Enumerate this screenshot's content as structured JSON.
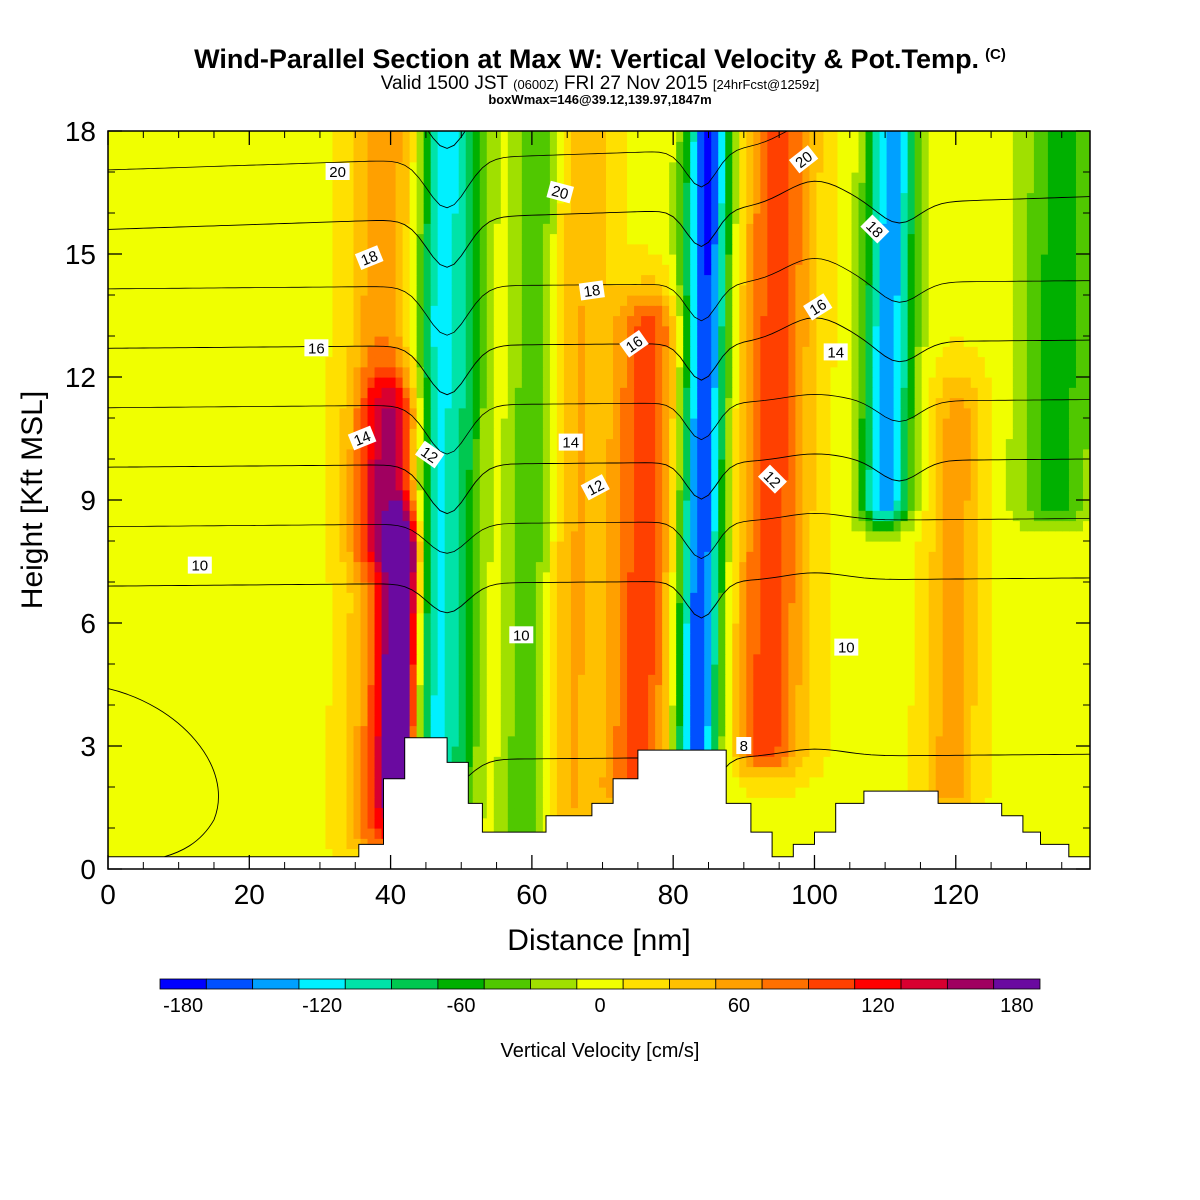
{
  "title": "Wind-Parallel Section at Max W: Vertical Velocity & Pot.Temp.",
  "title_mark": "(C)",
  "subtitle": {
    "prefix": "Valid 1500 JST",
    "utc": "(0600Z)",
    "date": "FRI 27 Nov 2015",
    "fcst": "[24hrFcst@1259z]"
  },
  "box_info": "boxWmax=146@39.12,139.97,1847m",
  "chart_data": {
    "type": "heatmap",
    "xlabel": "Distance [nm]",
    "ylabel": "Height [Kft MSL]",
    "xlim": [
      0,
      139
    ],
    "ylim": [
      0,
      18
    ],
    "x_ticks": [
      "0",
      "20",
      "40",
      "60",
      "80",
      "100",
      "120"
    ],
    "x_tick_values": [
      0,
      20,
      40,
      60,
      80,
      100,
      120
    ],
    "y_ticks": [
      "0",
      "3",
      "6",
      "9",
      "12",
      "15",
      "18"
    ],
    "y_tick_values": [
      0,
      3,
      6,
      9,
      12,
      15,
      18
    ],
    "colorbar": {
      "label": "Vertical Velocity [cm/s]",
      "tick_labels": [
        "-180",
        "-120",
        "-60",
        "0",
        "60",
        "120",
        "180"
      ],
      "tick_values": [
        -180,
        -120,
        -60,
        0,
        60,
        120,
        180
      ],
      "bounds": [
        -190,
        -170,
        -150,
        -130,
        -110,
        -90,
        -70,
        -50,
        -30,
        -10,
        10,
        30,
        50,
        70,
        90,
        110,
        130,
        150,
        170,
        190
      ],
      "colors": [
        "#0000ff",
        "#0050ff",
        "#00a0ff",
        "#00f0ff",
        "#00e3a8",
        "#00c850",
        "#00b000",
        "#50c800",
        "#a0e000",
        "#f0ff00",
        "#ffe000",
        "#ffc000",
        "#ffa000",
        "#ff7000",
        "#ff4000",
        "#ff0000",
        "#d80030",
        "#a00060",
        "#6a0aa0"
      ]
    },
    "velocity_features": [
      {
        "kind": "updraft",
        "x": 42,
        "z_bottom": 2,
        "z_top": 7.5,
        "peak": 190,
        "width": 1.6
      },
      {
        "kind": "updraft",
        "x": 40,
        "z_bottom": 1,
        "z_top": 11,
        "peak": 100,
        "width": 3.2
      },
      {
        "kind": "updraft",
        "x": 38,
        "z_bottom": 8,
        "z_top": 18,
        "peak": 60,
        "width": 3.0
      },
      {
        "kind": "downdraft",
        "x": 46,
        "z_bottom": 3,
        "z_top": 18,
        "peak": -110,
        "width": 2.0
      },
      {
        "kind": "downdraft",
        "x": 50,
        "z_bottom": 1.5,
        "z_top": 18,
        "peak": -80,
        "width": 2.2
      },
      {
        "kind": "downdraft",
        "x": 60,
        "z_bottom": 1,
        "z_top": 18,
        "peak": -55,
        "width": 2.5
      },
      {
        "kind": "updraft",
        "x": 76,
        "z_bottom": 2,
        "z_top": 13,
        "peak": 95,
        "width": 3.5
      },
      {
        "kind": "updraft",
        "x": 66,
        "z_bottom": 1,
        "z_top": 18,
        "peak": 45,
        "width": 3.0
      },
      {
        "kind": "downdraft",
        "x": 84,
        "z_bottom": 2.5,
        "z_top": 18,
        "peak": -180,
        "width": 2.3
      },
      {
        "kind": "updraft",
        "x": 94,
        "z_bottom": 3,
        "z_top": 18,
        "peak": 95,
        "width": 3.5
      },
      {
        "kind": "downdraft",
        "x": 110,
        "z_bottom": 9,
        "z_top": 18,
        "peak": -150,
        "width": 2.5
      },
      {
        "kind": "updraft",
        "x": 120,
        "z_bottom": 2,
        "z_top": 11,
        "peak": 55,
        "width": 2.5
      },
      {
        "kind": "downdraft",
        "x": 134,
        "z_bottom": 9,
        "z_top": 18,
        "peak": -65,
        "width": 4.0
      }
    ],
    "terrain_profile": {
      "x": [
        0,
        35.5,
        35.5,
        39,
        39,
        42,
        42,
        48,
        48,
        51,
        51,
        53,
        53,
        62,
        62,
        68.5,
        68.5,
        71.5,
        71.5,
        75,
        75,
        78,
        78,
        87.5,
        87.5,
        91,
        91,
        94,
        94,
        97,
        97,
        100,
        100,
        103,
        103,
        107,
        107,
        117.5,
        117.5,
        126.5,
        126.5,
        129.5,
        129.5,
        132,
        132,
        136,
        136,
        139
      ],
      "z": [
        0.3,
        0.3,
        0.6,
        0.6,
        2.2,
        2.2,
        3.2,
        3.2,
        2.6,
        2.6,
        1.6,
        1.6,
        0.9,
        0.9,
        1.3,
        1.3,
        1.6,
        1.6,
        2.2,
        2.2,
        2.9,
        2.9,
        2.9,
        2.9,
        1.6,
        1.6,
        0.9,
        0.9,
        0.3,
        0.3,
        0.6,
        0.6,
        0.9,
        0.9,
        1.6,
        1.6,
        1.9,
        1.9,
        1.6,
        1.6,
        1.3,
        1.3,
        0.9,
        0.9,
        0.6,
        0.6,
        0.3,
        0.3
      ]
    },
    "contour_levels": [
      8,
      10,
      12,
      14,
      16,
      18,
      20
    ],
    "contour_labels": [
      {
        "text": "20",
        "x": 32.5,
        "z": 17.0,
        "angle": 0
      },
      {
        "text": "18",
        "x": 37,
        "z": 14.9,
        "angle": -22
      },
      {
        "text": "16",
        "x": 29.5,
        "z": 12.7,
        "angle": 0
      },
      {
        "text": "14",
        "x": 36,
        "z": 10.5,
        "angle": -22
      },
      {
        "text": "12",
        "x": 45.5,
        "z": 10.1,
        "angle": 35
      },
      {
        "text": "10",
        "x": 13,
        "z": 7.4,
        "angle": 0
      },
      {
        "text": "20",
        "x": 64,
        "z": 16.5,
        "angle": 15
      },
      {
        "text": "18",
        "x": 68.5,
        "z": 14.1,
        "angle": -8
      },
      {
        "text": "16",
        "x": 74.5,
        "z": 12.8,
        "angle": -35
      },
      {
        "text": "14",
        "x": 65.5,
        "z": 10.4,
        "angle": 0
      },
      {
        "text": "12",
        "x": 69,
        "z": 9.3,
        "angle": -28
      },
      {
        "text": "10",
        "x": 58.5,
        "z": 5.7,
        "angle": 0
      },
      {
        "text": "20",
        "x": 98.5,
        "z": 17.3,
        "angle": -38
      },
      {
        "text": "18",
        "x": 108.5,
        "z": 15.6,
        "angle": 45
      },
      {
        "text": "16",
        "x": 100.5,
        "z": 13.7,
        "angle": -32
      },
      {
        "text": "14",
        "x": 103,
        "z": 12.6,
        "angle": 0
      },
      {
        "text": "12",
        "x": 94,
        "z": 9.5,
        "angle": 45
      },
      {
        "text": "10",
        "x": 104.5,
        "z": 5.4,
        "angle": 0
      },
      {
        "text": "8",
        "x": 90,
        "z": 3.0,
        "angle": 0
      }
    ]
  },
  "colors": {
    "background": "#ffffff",
    "contour": "#000000",
    "terrain": "#ffffff"
  }
}
